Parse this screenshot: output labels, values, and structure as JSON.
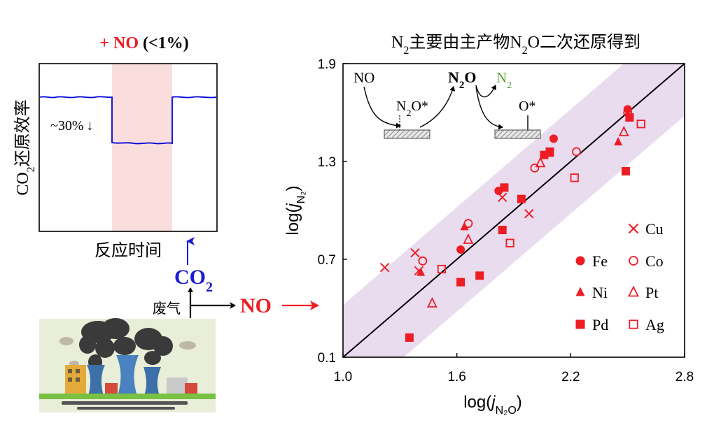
{
  "left_panel": {
    "title_plus": "+ NO",
    "title_paren": "(<1%)",
    "y_label": {
      "pre": "CO",
      "sub": "2",
      "post": "还原效率"
    },
    "x_label": "反应时间",
    "drop_annotation": "~30%",
    "drop_arrow": "↓",
    "trace_color": "#0000dd",
    "highlight_color": "#f9dedd"
  },
  "flow": {
    "co2": {
      "pre": "CO",
      "sub": "2"
    },
    "exhaust_label": "废气",
    "no_label": "NO",
    "co2_color": "#1a1ad6",
    "no_color": "#ee1c24"
  },
  "right_panel": {
    "title": {
      "p1": "N",
      "sub": "2",
      "p2": "主要由主产物N",
      "sub2": "2",
      "p3": "O二次还原得到"
    },
    "mechanism": {
      "no": "NO",
      "n2o_star": {
        "pre": "N",
        "sub": "2",
        "post": "O*"
      },
      "n2o_bold": {
        "pre": "N",
        "sub": "2",
        "post": "O"
      },
      "n2": {
        "pre": "N",
        "sub": "2"
      },
      "o_star": "O*",
      "n2_color": "#5a9e32"
    },
    "band_color": "#eadcef",
    "marker_color": "#ee1c24"
  },
  "chart_data": {
    "type": "scatter",
    "title": "N2主要由主产物N2O二次还原得到",
    "xlabel": {
      "pre": "log(",
      "it": "j",
      "sub": "N₂O",
      "post": ")"
    },
    "ylabel": {
      "pre": "log(",
      "it": "j",
      "sub": "N₂",
      "post": ")"
    },
    "xlim": [
      1.0,
      2.8
    ],
    "ylim": [
      0.1,
      1.9
    ],
    "xticks": [
      "1.0",
      "1.6",
      "2.2",
      "2.8"
    ],
    "yticks": [
      "0.1",
      "0.7",
      "1.3",
      "1.9"
    ],
    "diagonal": [
      [
        1.0,
        0.1
      ],
      [
        2.8,
        1.9
      ]
    ],
    "band_half_width": 0.32,
    "series": [
      {
        "name": "Cu",
        "marker": "x",
        "points": [
          [
            1.22,
            0.65
          ],
          [
            1.38,
            0.74
          ],
          [
            1.84,
            1.08
          ],
          [
            1.98,
            0.98
          ],
          [
            1.4,
            0.63
          ]
        ]
      },
      {
        "name": "Fe",
        "marker": "circle-filled",
        "points": [
          [
            1.62,
            0.76
          ],
          [
            1.82,
            1.12
          ],
          [
            2.11,
            1.44
          ],
          [
            2.5,
            1.62
          ]
        ]
      },
      {
        "name": "Co",
        "marker": "circle-open",
        "points": [
          [
            1.42,
            0.69
          ],
          [
            1.66,
            0.92
          ],
          [
            2.01,
            1.26
          ],
          [
            2.23,
            1.36
          ],
          [
            2.5,
            1.6
          ]
        ]
      },
      {
        "name": "Ni",
        "marker": "triangle-filled",
        "points": [
          [
            1.41,
            0.62
          ],
          [
            1.64,
            0.9
          ],
          [
            2.09,
            1.35
          ],
          [
            2.45,
            1.42
          ]
        ]
      },
      {
        "name": "Pt",
        "marker": "triangle-open",
        "points": [
          [
            1.47,
            0.43
          ],
          [
            1.66,
            0.82
          ],
          [
            2.04,
            1.29
          ],
          [
            2.48,
            1.48
          ]
        ]
      },
      {
        "name": "Pd",
        "marker": "square-filled",
        "points": [
          [
            1.35,
            0.22
          ],
          [
            1.62,
            0.56
          ],
          [
            1.72,
            0.6
          ],
          [
            1.84,
            0.88
          ],
          [
            1.85,
            1.14
          ],
          [
            1.94,
            1.07
          ],
          [
            2.06,
            1.34
          ],
          [
            2.09,
            1.36
          ],
          [
            2.49,
            1.24
          ],
          [
            2.51,
            1.57
          ]
        ]
      },
      {
        "name": "Ag",
        "marker": "square-open",
        "points": [
          [
            1.52,
            0.64
          ],
          [
            1.88,
            0.8
          ],
          [
            2.22,
            1.2
          ],
          [
            2.57,
            1.53
          ]
        ]
      }
    ],
    "legend": {
      "placement": "bottom-right",
      "entries": [
        "Cu",
        "Fe",
        "Co",
        "Ni",
        "Pt",
        "Pd",
        "Ag"
      ]
    }
  }
}
